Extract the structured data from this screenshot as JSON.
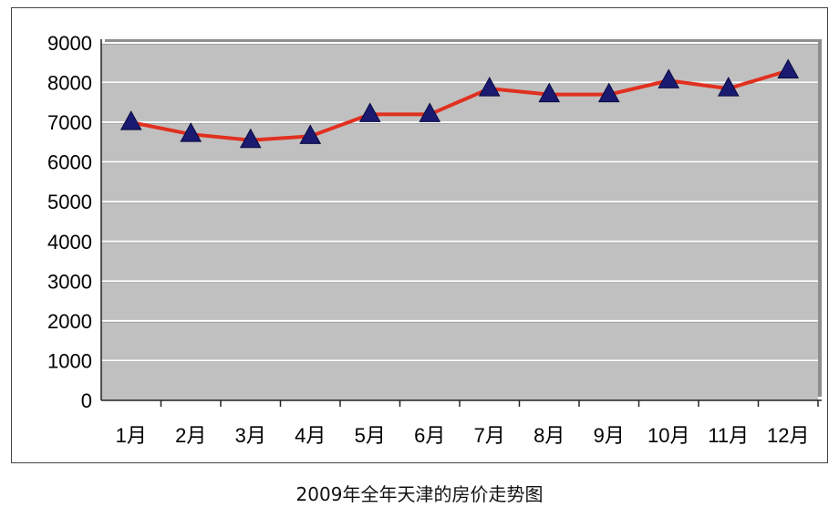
{
  "caption": "2009年全年天津的房价走势图",
  "chart_data": {
    "type": "line",
    "title": "",
    "xlabel": "",
    "ylabel": "",
    "categories": [
      "1月",
      "2月",
      "3月",
      "4月",
      "5月",
      "6月",
      "7月",
      "8月",
      "9月",
      "10月",
      "11月",
      "12月"
    ],
    "series": [
      {
        "values": [
          7000,
          6700,
          6550,
          6650,
          7200,
          7200,
          7850,
          7700,
          7700,
          8050,
          7850,
          8300
        ]
      }
    ],
    "ylim": [
      0,
      9000
    ],
    "yticks": [
      0,
      1000,
      2000,
      3000,
      4000,
      5000,
      6000,
      7000,
      8000,
      9000
    ],
    "grid": true,
    "legend": "none",
    "colors": {
      "plot_background": "#c0c0c0",
      "line": "#e03020",
      "marker": "#1a1a70",
      "gridline": "#ffffff"
    },
    "marker": "triangle"
  }
}
